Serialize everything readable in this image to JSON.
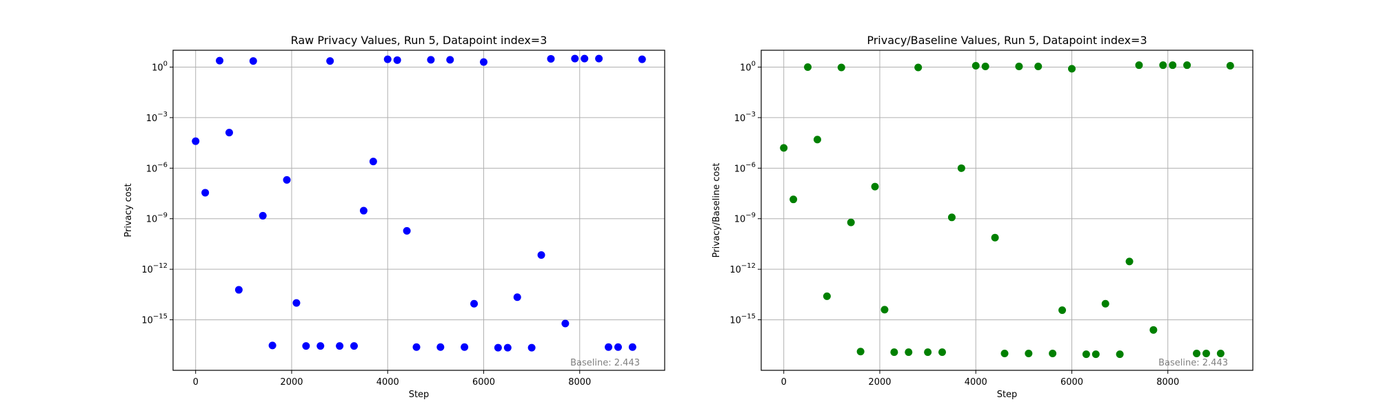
{
  "chart_data": [
    {
      "type": "scatter",
      "title": "Raw Privacy Values, Run 5, Datapoint index=3",
      "xlabel": "Step",
      "ylabel": "Privacy cost",
      "yscale": "log",
      "grid": true,
      "color": "#0000ff",
      "xlim": [
        -470,
        9770
      ],
      "ylim": [
        1e-18,
        10.0
      ],
      "xticks": [
        0,
        2000,
        4000,
        6000,
        8000
      ],
      "xtick_labels": [
        "0",
        "2000",
        "4000",
        "6000",
        "8000"
      ],
      "yticks": [
        1.0,
        0.001,
        1e-06,
        1e-09,
        1e-12,
        1e-15
      ],
      "ytick_labels": [
        [
          "10",
          "0"
        ],
        [
          "10",
          "−3"
        ],
        [
          "10",
          "−6"
        ],
        [
          "10",
          "−9"
        ],
        [
          "10",
          "−12"
        ],
        [
          "10",
          "−15"
        ]
      ],
      "annotation": "Baseline: 2.443",
      "points": [
        [
          0,
          4e-05
        ],
        [
          200,
          3.5e-08
        ],
        [
          500,
          2.4
        ],
        [
          700,
          0.00013
        ],
        [
          900,
          6e-14
        ],
        [
          1200,
          2.3
        ],
        [
          1400,
          1.5e-09
        ],
        [
          1600,
          3e-17
        ],
        [
          1900,
          2e-07
        ],
        [
          2100,
          1e-14
        ],
        [
          2300,
          2.8e-17
        ],
        [
          2600,
          2.8e-17
        ],
        [
          2800,
          2.3
        ],
        [
          3000,
          2.8e-17
        ],
        [
          3300,
          2.8e-17
        ],
        [
          3500,
          3e-09
        ],
        [
          3700,
          2.5e-06
        ],
        [
          4000,
          2.9
        ],
        [
          4200,
          2.6
        ],
        [
          4400,
          1.9e-10
        ],
        [
          4600,
          2.4e-17
        ],
        [
          4900,
          2.7
        ],
        [
          5100,
          2.4e-17
        ],
        [
          5300,
          2.7
        ],
        [
          5600,
          2.4e-17
        ],
        [
          5800,
          9e-15
        ],
        [
          6000,
          2.0
        ],
        [
          6300,
          2.2e-17
        ],
        [
          6500,
          2.2e-17
        ],
        [
          6700,
          2.2e-14
        ],
        [
          7000,
          2.2e-17
        ],
        [
          7200,
          7e-12
        ],
        [
          7400,
          3.1
        ],
        [
          7700,
          6e-16
        ],
        [
          7900,
          3.2
        ],
        [
          8100,
          3.2
        ],
        [
          8400,
          3.2
        ],
        [
          8600,
          2.4e-17
        ],
        [
          8800,
          2.4e-17
        ],
        [
          9100,
          2.4e-17
        ],
        [
          9300,
          2.9
        ]
      ]
    },
    {
      "type": "scatter",
      "title": "Privacy/Baseline Values, Run 5, Datapoint index=3",
      "xlabel": "Step",
      "ylabel": "Privacy/Baseline cost",
      "yscale": "log",
      "grid": true,
      "color": "#008000",
      "xlim": [
        -470,
        9770
      ],
      "ylim": [
        1e-18,
        10.0
      ],
      "xticks": [
        0,
        2000,
        4000,
        6000,
        8000
      ],
      "xtick_labels": [
        "0",
        "2000",
        "4000",
        "6000",
        "8000"
      ],
      "yticks": [
        1.0,
        0.001,
        1e-06,
        1e-09,
        1e-12,
        1e-15
      ],
      "ytick_labels": [
        [
          "10",
          "0"
        ],
        [
          "10",
          "−3"
        ],
        [
          "10",
          "−6"
        ],
        [
          "10",
          "−9"
        ],
        [
          "10",
          "−12"
        ],
        [
          "10",
          "−15"
        ]
      ],
      "annotation": "Baseline: 2.443",
      "points": [
        [
          0,
          1.6e-05
        ],
        [
          200,
          1.4e-08
        ],
        [
          500,
          1.0
        ],
        [
          700,
          5e-05
        ],
        [
          900,
          2.5e-14
        ],
        [
          1200,
          0.95
        ],
        [
          1400,
          6e-10
        ],
        [
          1600,
          1.3e-17
        ],
        [
          1900,
          8e-08
        ],
        [
          2100,
          4e-15
        ],
        [
          2300,
          1.2e-17
        ],
        [
          2600,
          1.2e-17
        ],
        [
          2800,
          0.95
        ],
        [
          3000,
          1.2e-17
        ],
        [
          3300,
          1.2e-17
        ],
        [
          3500,
          1.2e-09
        ],
        [
          3700,
          1e-06
        ],
        [
          4000,
          1.2
        ],
        [
          4200,
          1.1
        ],
        [
          4400,
          7.5e-11
        ],
        [
          4600,
          1e-17
        ],
        [
          4900,
          1.1
        ],
        [
          5100,
          1e-17
        ],
        [
          5300,
          1.1
        ],
        [
          5600,
          1e-17
        ],
        [
          5800,
          3.7e-15
        ],
        [
          6000,
          0.8
        ],
        [
          6300,
          9e-18
        ],
        [
          6500,
          9e-18
        ],
        [
          6700,
          9e-15
        ],
        [
          7000,
          9e-18
        ],
        [
          7200,
          2.9e-12
        ],
        [
          7400,
          1.3
        ],
        [
          7700,
          2.5e-16
        ],
        [
          7900,
          1.3
        ],
        [
          8100,
          1.3
        ],
        [
          8400,
          1.3
        ],
        [
          8600,
          1e-17
        ],
        [
          8800,
          1e-17
        ],
        [
          9100,
          1e-17
        ],
        [
          9300,
          1.2
        ]
      ]
    }
  ]
}
